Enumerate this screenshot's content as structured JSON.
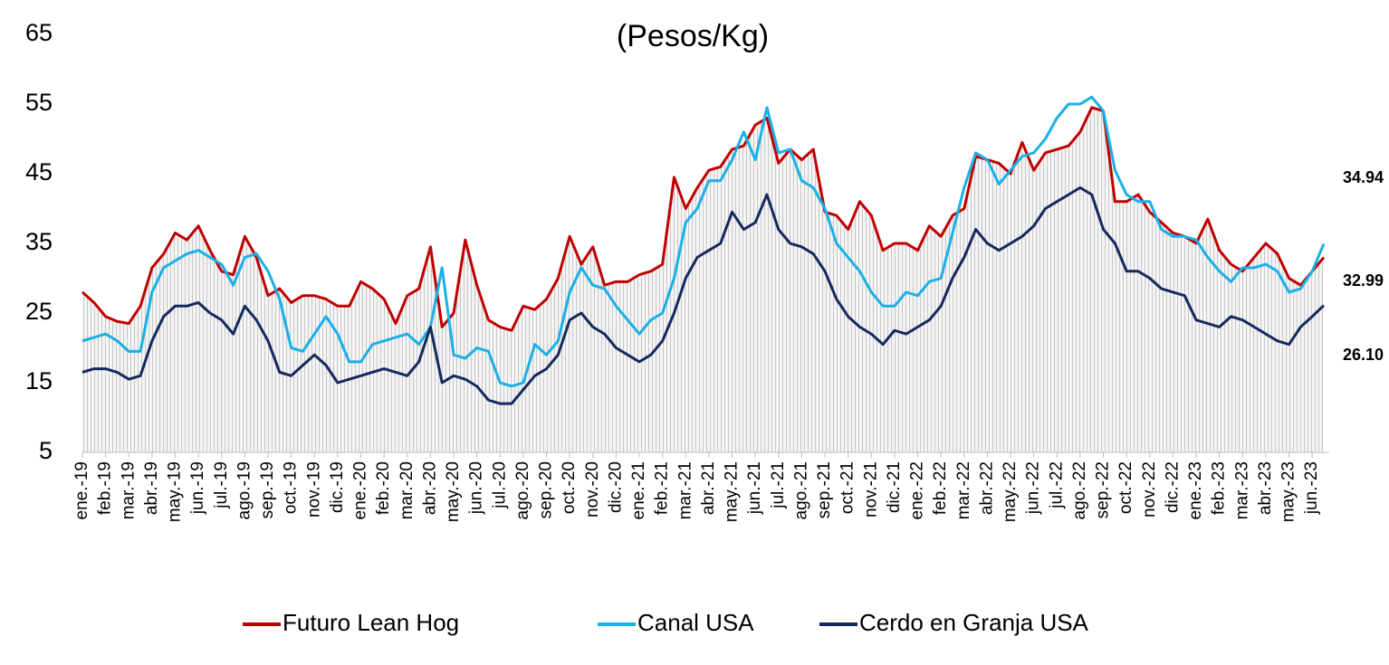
{
  "chart_data": {
    "type": "line",
    "title": "(Pesos/Kg)",
    "categories": [
      "ene.-19",
      null,
      "feb.-19",
      null,
      "mar.-19",
      null,
      "abr.-19",
      null,
      "may.-19",
      null,
      "jun.-19",
      null,
      "jul.-19",
      null,
      "ago.-19",
      null,
      "sep.-19",
      null,
      "oct.-19",
      null,
      "nov.-19",
      null,
      "dic.-19",
      null,
      "ene.-20",
      null,
      "feb.-20",
      null,
      "mar.-20",
      null,
      "abr.-20",
      null,
      "may.-20",
      null,
      "jun.-20",
      null,
      "jul.-20",
      null,
      "ago.-20",
      null,
      "sep.-20",
      null,
      "oct.-20",
      null,
      "nov.-20",
      null,
      "dic.-20",
      null,
      "ene.-21",
      null,
      "feb.-21",
      null,
      "mar.-21",
      null,
      "abr.-21",
      null,
      "may.-21",
      null,
      "jun.-21",
      null,
      "jul.-21",
      null,
      "ago.-21",
      null,
      "sep.-21",
      null,
      "oct.-21",
      null,
      "nov.-21",
      null,
      "dic.-21",
      null,
      "ene.-22",
      null,
      "feb.-22",
      null,
      "mar.-22",
      null,
      "abr.-22",
      null,
      "may.-22",
      null,
      "jun.-22",
      null,
      "jul.-22",
      null,
      "ago.-22",
      null,
      "sep.-22",
      null,
      "oct.-22",
      null,
      "nov.-22",
      null,
      "dic.-22",
      null,
      "ene.-23",
      null,
      "feb.-23",
      null,
      "mar.-23",
      null,
      "abr.-23",
      null,
      "may.-23",
      null,
      "jun.-23",
      null
    ],
    "series": [
      {
        "name": "Futuro Lean Hog",
        "color": "#c00000",
        "values": [
          28,
          26.5,
          24.5,
          23.8,
          23.5,
          26,
          31.5,
          33.5,
          36.5,
          35.5,
          37.5,
          34,
          31,
          30.5,
          36,
          33,
          27.5,
          28.5,
          26.5,
          27.5,
          27.5,
          27,
          26,
          26,
          29.5,
          28.5,
          27,
          23.5,
          27.5,
          28.5,
          34.5,
          23,
          25,
          35.5,
          29,
          24,
          23,
          22.5,
          26,
          25.5,
          27,
          30,
          36,
          32,
          34.5,
          29,
          29.5,
          29.5,
          30.5,
          31,
          32,
          44.5,
          40,
          43,
          45.5,
          46,
          48.5,
          49,
          52,
          53,
          46.5,
          48.5,
          47,
          48.5,
          39.5,
          39,
          37,
          41,
          39,
          34,
          35,
          35,
          34,
          37.5,
          36,
          39,
          40,
          47.5,
          47,
          46.5,
          45,
          49.5,
          45.5,
          48,
          48.5,
          49,
          51,
          54.5,
          54,
          41,
          41,
          42,
          39.5,
          38,
          36.5,
          36,
          35,
          38.5,
          34,
          32,
          31,
          33,
          35,
          33.5,
          30,
          29,
          31,
          32.99
        ]
      },
      {
        "name": "Canal USA",
        "color": "#1ab0e8",
        "values": [
          21,
          21.5,
          22,
          21,
          19.5,
          19.5,
          28,
          31.5,
          32.5,
          33.5,
          34,
          33,
          32,
          29,
          33,
          33.5,
          31,
          27,
          20,
          19.5,
          22,
          24.5,
          22,
          18,
          18,
          20.5,
          21,
          21.5,
          22,
          20.5,
          23,
          31.5,
          19,
          18.5,
          20,
          19.5,
          15,
          14.5,
          15,
          20.5,
          19,
          21,
          28,
          31.5,
          29,
          28.5,
          26,
          24,
          22,
          24,
          25,
          30,
          38,
          40,
          44,
          44,
          47,
          51,
          47,
          54.5,
          48,
          48.5,
          44,
          43,
          40,
          35,
          33,
          31,
          28,
          26,
          26,
          28,
          27.5,
          29.5,
          30,
          36.5,
          43,
          48,
          47,
          43.5,
          45.5,
          47.5,
          48,
          50,
          53,
          55,
          55,
          56,
          54,
          45.5,
          42,
          41,
          41,
          37,
          36,
          36,
          35.5,
          33,
          31,
          29.5,
          31.5,
          31.5,
          32,
          31,
          28,
          28.5,
          31,
          34.94
        ]
      },
      {
        "name": "Cerdo en Granja USA",
        "color": "#14295e",
        "values": [
          16.5,
          17,
          17,
          16.5,
          15.5,
          16,
          21,
          24.5,
          26,
          26,
          26.5,
          25,
          24,
          22,
          26,
          24,
          21,
          16.5,
          16,
          17.5,
          19,
          17.5,
          15,
          15.5,
          16,
          16.5,
          17,
          16.5,
          16,
          18,
          23,
          15,
          16,
          15.5,
          14.5,
          12.5,
          12,
          12,
          14,
          16,
          17,
          19,
          24,
          25,
          23,
          22,
          20,
          19,
          18,
          19,
          21,
          25,
          30,
          33,
          34,
          35,
          39.5,
          37,
          38,
          42,
          37,
          35,
          34.5,
          33.5,
          31,
          27,
          24.5,
          23,
          22,
          20.5,
          22.5,
          22,
          23,
          24,
          26,
          30,
          33,
          37,
          35,
          34,
          35,
          36,
          37.5,
          40,
          41,
          42,
          43,
          42,
          37,
          35,
          31,
          31,
          30,
          28.5,
          28,
          27.5,
          24,
          23.5,
          23,
          24.5,
          24,
          23,
          22,
          21,
          20.5,
          23,
          24.5,
          26.1
        ],
        "value_labels": [
          null,
          null,
          null,
          null,
          null,
          null,
          null,
          null,
          null,
          null,
          null,
          null,
          null,
          null,
          null,
          null,
          null,
          null,
          null,
          null,
          null,
          null,
          null,
          null,
          null,
          null,
          null,
          null,
          null,
          null,
          null,
          null,
          null,
          null,
          null,
          null,
          null,
          null,
          null,
          null,
          null,
          null,
          null,
          null,
          null,
          null,
          null,
          null,
          null,
          null,
          null,
          null,
          null,
          null,
          null,
          null,
          null,
          null,
          null,
          null,
          null,
          null,
          null,
          null,
          null,
          null,
          null,
          null,
          null,
          null,
          null,
          null,
          null,
          null,
          null,
          null,
          null,
          null,
          null,
          null,
          null,
          null,
          null,
          null,
          null,
          null,
          null,
          null,
          null,
          null,
          null,
          null,
          null,
          null,
          null,
          null,
          null,
          null,
          null,
          null,
          null,
          null,
          null,
          null,
          null,
          null,
          null,
          "26.10"
        ]
      }
    ],
    "ylim": [
      5,
      65
    ],
    "yticks": [
      5,
      15,
      25,
      35,
      45,
      55,
      65
    ],
    "legend": "bottom"
  }
}
